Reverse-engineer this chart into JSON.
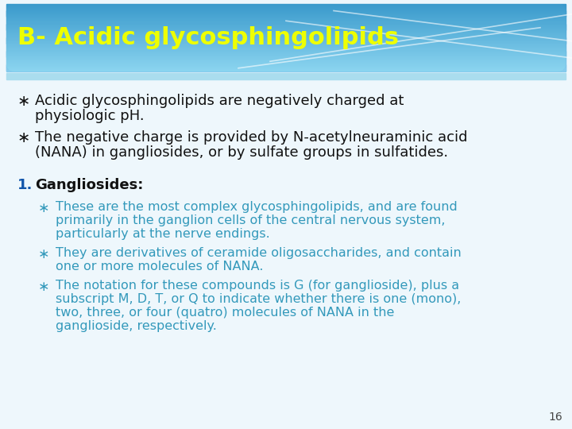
{
  "title": "B- Acidic glycosphingolipids",
  "title_color": "#EEFF00",
  "slide_bg": "#EEF7FC",
  "header_rect_color_left": "#3399CC",
  "header_rect_color_right": "#88CCEE",
  "bullet_color": "#111111",
  "sub_bullet_color": "#3399BB",
  "numbered_color": "#1155AA",
  "numbered_label_color": "#111111",
  "page_number": "16",
  "bullets": [
    "Acidic glycosphingolipids are negatively charged at\nphysiologic pH.",
    "The negative charge is provided by N-acetylneuraminic acid\n(NANA) in gangliosides, or by sulfate groups in sulfatides."
  ],
  "numbered_items": [
    {
      "number": "1.",
      "label": "Gangliosides:",
      "sub_bullets": [
        "These are the most complex glycosphingolipids, and are found\nprimarily in the ganglion cells of the central nervous system,\nparticularly at the nerve endings.",
        "They are derivatives of ceramide oligosaccharides, and contain\none or more molecules of NANA.",
        "The notation for these compounds is G (for ganglioside), plus a\nsubscript M, D, T, or Q to indicate whether there is one (mono),\ntwo, three, or four (quatro) molecules of NANA in the\nganglioside, respectively."
      ]
    }
  ]
}
